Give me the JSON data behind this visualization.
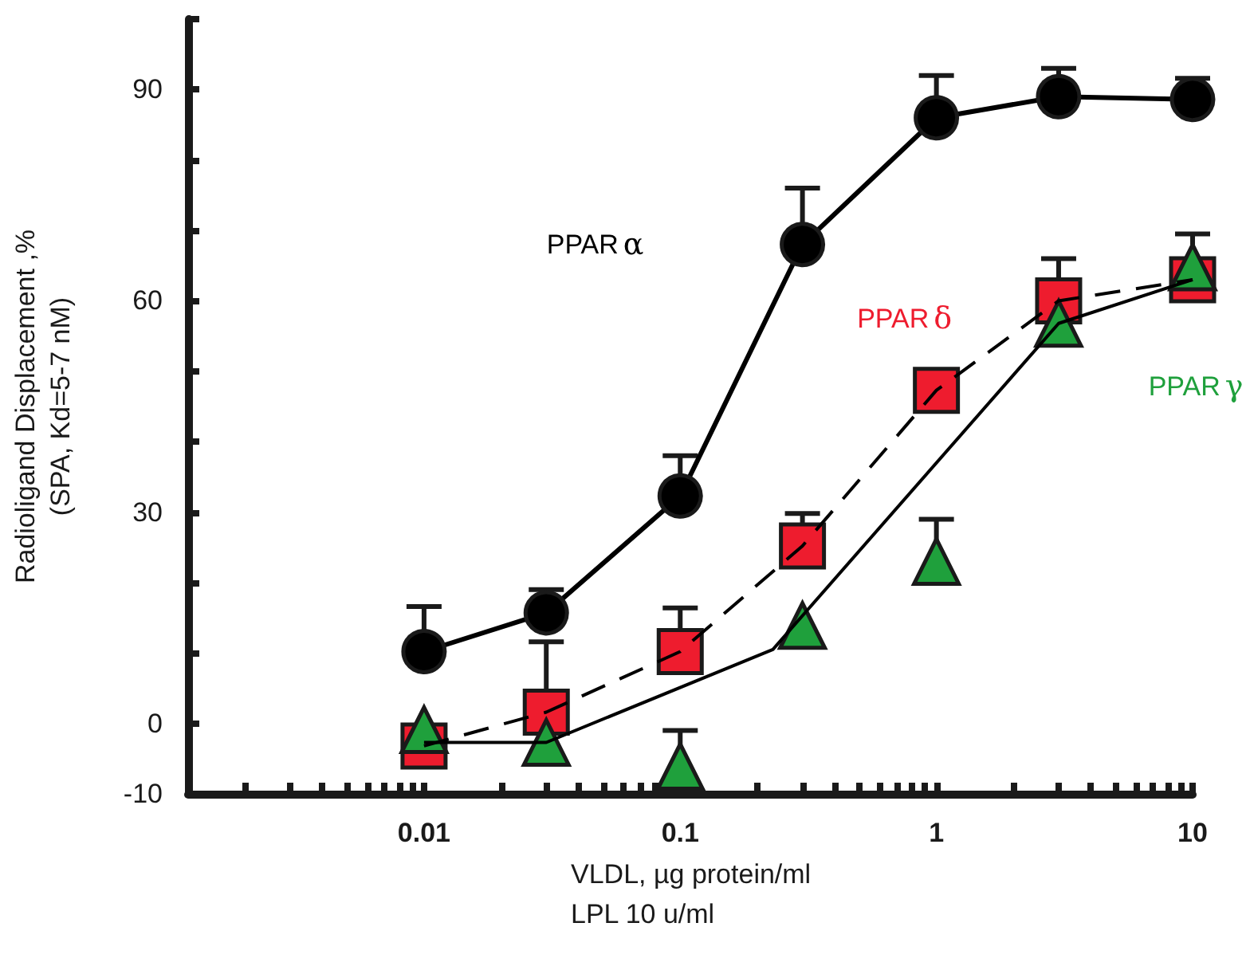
{
  "chart_data": {
    "type": "line",
    "xlabel": "VLDL, µg protein/ml\nLPL 10 u/ml",
    "ylabel": "Radioligand Displacement ,%\n(SPA, Kd=5-7 nM)",
    "log": "x",
    "legend": false,
    "grid": false,
    "xlim": [
      0.0012,
      10
    ],
    "xticks": [
      {
        "value": 0.002,
        "label": null
      },
      {
        "value": 0.003,
        "label": null
      },
      {
        "value": 0.004,
        "label": null
      },
      {
        "value": 0.005,
        "label": null
      },
      {
        "value": 0.006,
        "label": null
      },
      {
        "value": 0.007,
        "label": null
      },
      {
        "value": 0.008,
        "label": null
      },
      {
        "value": 0.009,
        "label": null
      },
      0.01,
      {
        "value": 0.02,
        "label": null
      },
      {
        "value": 0.03,
        "label": null
      },
      {
        "value": 0.04,
        "label": null
      },
      {
        "value": 0.05,
        "label": null
      },
      {
        "value": 0.06,
        "label": null
      },
      {
        "value": 0.07,
        "label": null
      },
      {
        "value": 0.08,
        "label": null
      },
      {
        "value": 0.09,
        "label": null
      },
      0.1,
      {
        "value": 0.2,
        "label": null
      },
      {
        "value": 0.3,
        "label": null
      },
      {
        "value": 0.4,
        "label": null
      },
      {
        "value": 0.5,
        "label": null
      },
      {
        "value": 0.6,
        "label": null
      },
      {
        "value": 0.7,
        "label": null
      },
      {
        "value": 0.8,
        "label": null
      },
      {
        "value": 0.9,
        "label": null
      },
      1,
      {
        "value": 2,
        "label": null
      },
      {
        "value": 3,
        "label": null
      },
      {
        "value": 4,
        "label": null
      },
      {
        "value": 5,
        "label": null
      },
      {
        "value": 6,
        "label": null
      },
      {
        "value": 7,
        "label": null
      },
      {
        "value": 8,
        "label": null
      },
      {
        "value": 9,
        "label": null
      },
      10
    ],
    "ylim": [
      -10,
      100
    ],
    "yticks": [
      -10,
      0,
      {
        "value": 10,
        "label": null
      },
      {
        "value": 20,
        "label": null
      },
      30,
      {
        "value": 40,
        "label": null
      },
      {
        "value": 50,
        "label": null
      },
      60,
      {
        "value": 70,
        "label": null
      },
      {
        "value": 80,
        "label": null
      },
      90,
      {
        "value": 100,
        "label": null
      }
    ],
    "series": [
      {
        "name": "PPARα",
        "type": "line",
        "color": "#000000",
        "marker": "circle",
        "line_style": "solid",
        "x": [
          0.01,
          0.03,
          0.1,
          0.3,
          1,
          3,
          10
        ],
        "values": [
          10.2,
          15.7,
          32.3,
          68,
          86,
          89,
          88.6
        ],
        "errors": [
          [
            10.2,
            16.6
          ],
          [
            15.7,
            19
          ],
          [
            32.3,
            38
          ],
          [
            68,
            76
          ],
          [
            86,
            92
          ],
          [
            89,
            93
          ],
          [
            88.6,
            91.6
          ]
        ]
      },
      {
        "name": "PPARδ",
        "type": "scatter",
        "color": "#ee1c2e",
        "marker": "square",
        "x": [
          0.01,
          0.03,
          0.1,
          0.3,
          1,
          3,
          10
        ],
        "values": [
          -3.2,
          1.6,
          10.2,
          25.2,
          47.3,
          60,
          63
        ],
        "errors": [
          null,
          [
            1.6,
            11.6
          ],
          [
            10.2,
            16.4
          ],
          [
            25.2,
            29.8
          ],
          null,
          [
            60,
            66
          ],
          null
        ]
      },
      {
        "type": "line",
        "color": "#000000",
        "marker": "none",
        "line_style": "dashed",
        "x": [
          0.01,
          0.03,
          0.1,
          0.3,
          1,
          3,
          10
        ],
        "values": [
          -3.2,
          1.6,
          10.2,
          25.2,
          47.3,
          60,
          63
        ]
      },
      {
        "name": "PPARγ",
        "type": "scatter",
        "color": "#1fa03c",
        "marker": "triangle",
        "x": [
          0.01,
          0.03,
          0.1,
          0.3,
          1,
          3,
          10
        ],
        "values": [
          -0.9,
          -2.7,
          -6.1,
          13.9,
          23,
          56.8,
          64.8
        ],
        "errors": [
          null,
          null,
          [
            -6.1,
            -1
          ],
          null,
          [
            23,
            29
          ],
          null,
          [
            64.8,
            69.5
          ]
        ]
      },
      {
        "type": "line",
        "color": "#000000",
        "marker": "none",
        "line_style": "solid",
        "x": [
          0.01,
          0.03,
          0.23,
          3,
          10
        ],
        "values": [
          -2.7,
          -2.7,
          10.5,
          56.8,
          63
        ]
      }
    ]
  }
}
